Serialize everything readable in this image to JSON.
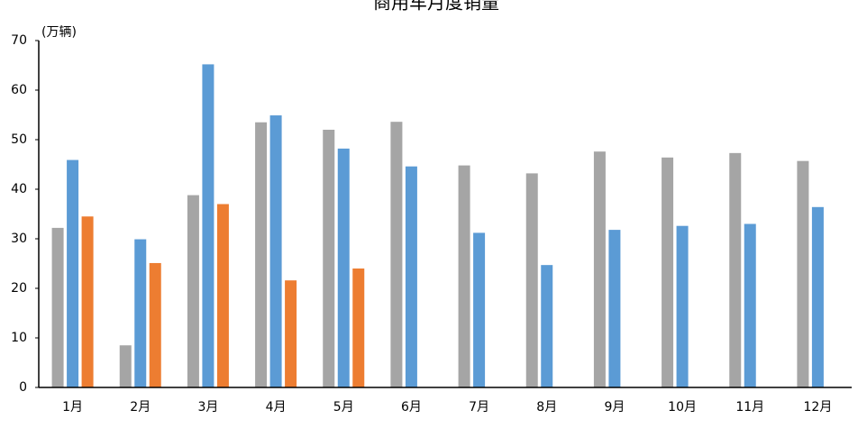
{
  "chart_data": {
    "type": "bar",
    "title": "商用车月度销量",
    "y_label": "(万辆)",
    "categories": [
      "1月",
      "2月",
      "3月",
      "4月",
      "5月",
      "6月",
      "7月",
      "8月",
      "9月",
      "10月",
      "11月",
      "12月"
    ],
    "series": [
      {
        "color": "#a5a5a5",
        "values": [
          32.2,
          8.5,
          38.8,
          53.5,
          52,
          53.6,
          44.8,
          43.2,
          47.6,
          46.4,
          47.3,
          45.7
        ]
      },
      {
        "color": "#5b9bd5",
        "values": [
          45.9,
          29.9,
          65.2,
          54.9,
          48.2,
          44.6,
          31.2,
          24.7,
          31.8,
          32.6,
          33,
          36.4
        ]
      },
      {
        "color": "#ed7d31",
        "values": [
          34.5,
          25.1,
          37,
          21.6,
          24,
          null,
          null,
          null,
          null,
          null,
          null,
          null
        ]
      }
    ],
    "ylim": [
      0,
      70
    ],
    "yticks": [
      0,
      10,
      20,
      30,
      40,
      50,
      60,
      70
    ],
    "grid": false
  }
}
